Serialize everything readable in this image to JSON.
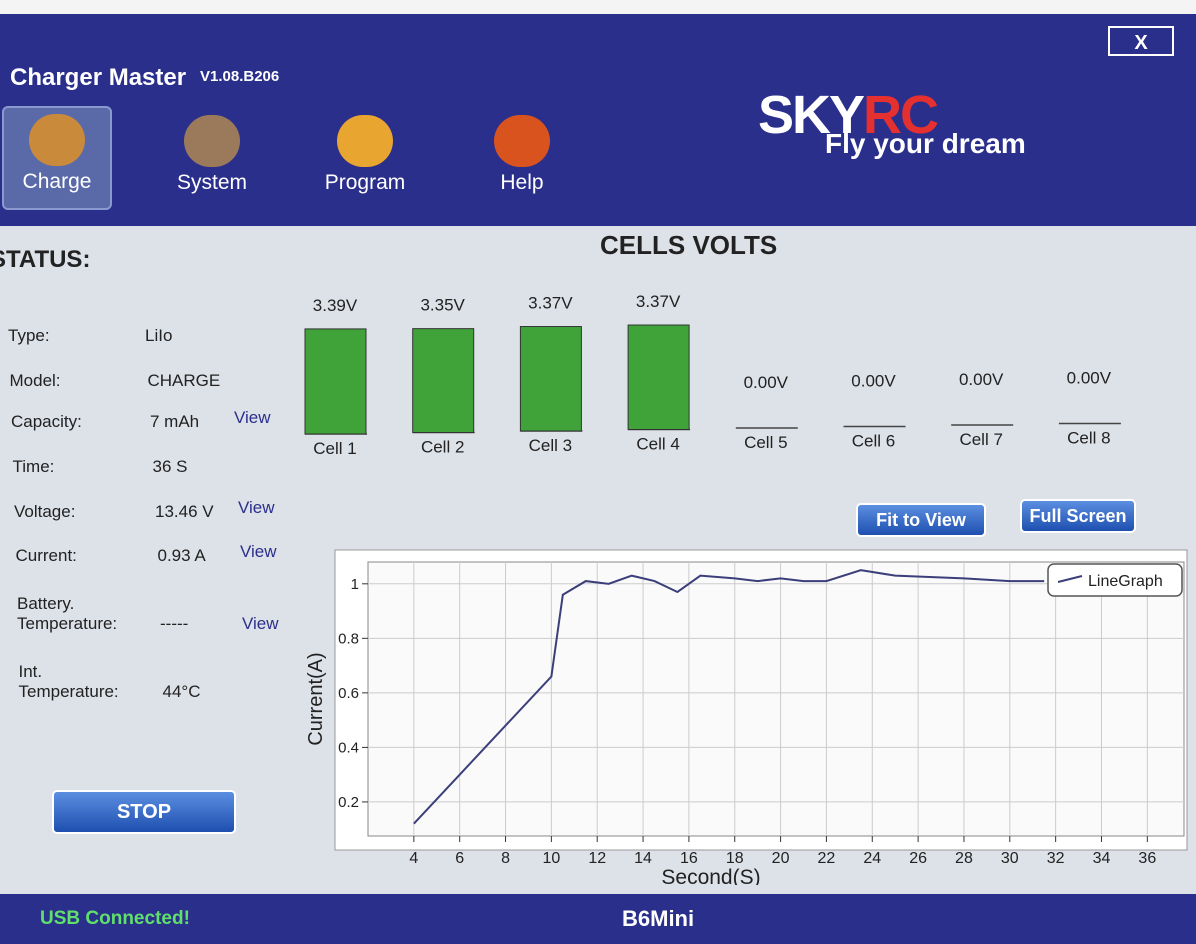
{
  "header": {
    "app_name": "Charger Master",
    "version": "V1.08.B206",
    "close": "X",
    "nav": [
      "Charge",
      "System",
      "Program",
      "Help"
    ],
    "brand_a": "SKY",
    "brand_b": "RC",
    "slogan": "Fly your dream"
  },
  "status": {
    "title": "STATUS:",
    "rows": [
      {
        "label": "Type:",
        "value": "LiIo"
      },
      {
        "label": "Model:",
        "value": "CHARGE"
      },
      {
        "label": "Capacity:",
        "value": "7 mAh",
        "link": "View"
      },
      {
        "label": "Time:",
        "value": "36 S"
      },
      {
        "label": "Voltage:",
        "value": "13.46 V",
        "link": "View"
      },
      {
        "label": "Current:",
        "value": "0.93 A",
        "link": "View"
      },
      {
        "label": "Battery.\nTemperature:",
        "value": "-----",
        "link": "View"
      },
      {
        "label": "Int.\nTemperature:",
        "value": "44°C"
      }
    ],
    "stop": "STOP"
  },
  "cells": {
    "title": "CELLS VOLTS",
    "labels": [
      "Cell 1",
      "Cell 2",
      "Cell 3",
      "Cell 4",
      "Cell 5",
      "Cell 6",
      "Cell 7",
      "Cell 8"
    ],
    "values": [
      3.39,
      3.35,
      3.37,
      3.37,
      0,
      0,
      0,
      0
    ],
    "value_labels": [
      "3.39V",
      "3.35V",
      "3.37V",
      "3.37V",
      "0.00V",
      "0.00V",
      "0.00V",
      "0.00V"
    ],
    "color": "#3fa33a"
  },
  "buttons": [
    "Fit to View",
    "Full Screen"
  ],
  "chart_data": {
    "type": "line",
    "xlabel": "Second(S)",
    "ylabel": "Current(A)",
    "x": [
      4,
      6,
      8,
      10,
      10.5,
      11.5,
      12.5,
      13.5,
      14.5,
      15.5,
      16.5,
      18,
      19,
      20,
      21,
      22,
      23.5,
      25,
      28,
      30,
      31.5
    ],
    "series": [
      {
        "name": "LineGraph",
        "color": "#3a3f7a",
        "values": [
          0.12,
          0.3,
          0.48,
          0.66,
          0.96,
          1.01,
          1.0,
          1.03,
          1.01,
          0.97,
          1.03,
          1.02,
          1.01,
          1.02,
          1.01,
          1.01,
          1.05,
          1.03,
          1.02,
          1.01,
          1.01
        ]
      }
    ],
    "xlim": [
      2,
      37.6
    ],
    "ylim": [
      0.075,
      1.08
    ],
    "xticks": [
      4,
      6,
      8,
      10,
      12,
      14,
      16,
      18,
      20,
      22,
      24,
      26,
      28,
      30,
      32,
      34,
      36
    ],
    "yticks": [
      0.2,
      0.4,
      0.6,
      0.8,
      1
    ],
    "grid": true,
    "legend": "top-right"
  },
  "footer": {
    "status": "USB Connected!",
    "device": "B6Mini"
  }
}
